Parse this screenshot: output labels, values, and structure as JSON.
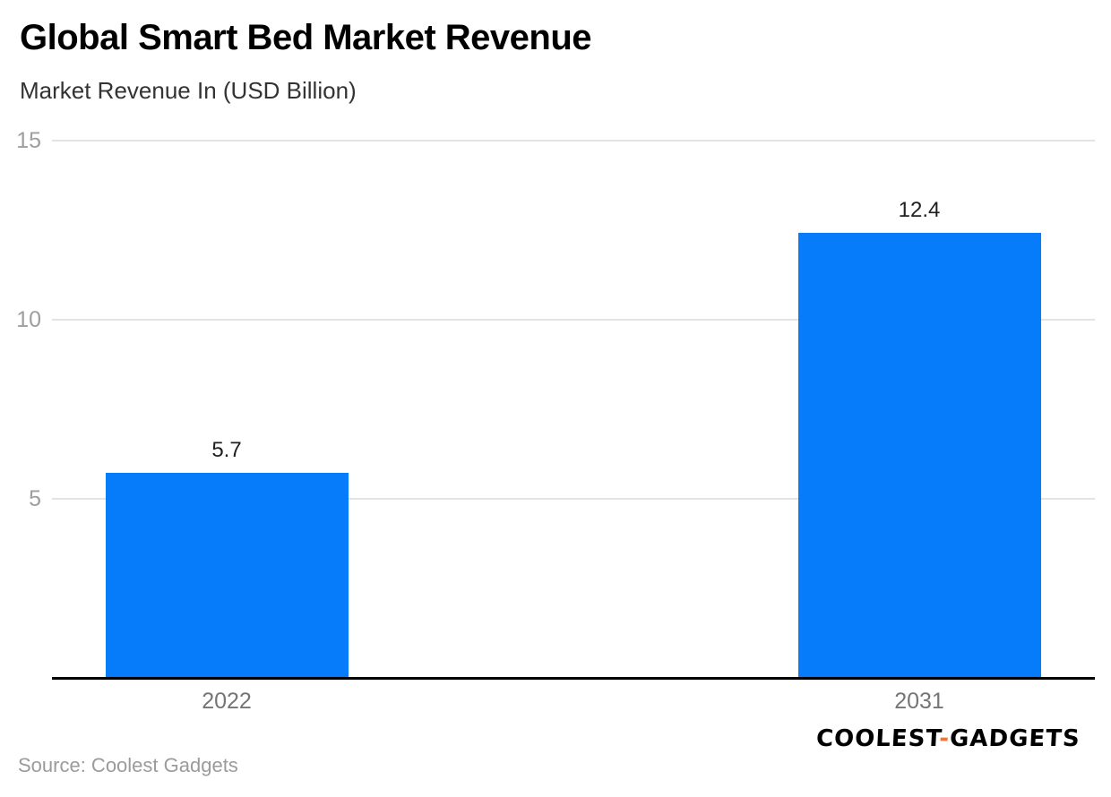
{
  "title": "Global Smart Bed Market Revenue",
  "subtitle": "Market Revenue In (USD Billion)",
  "source": "Source: Coolest Gadgets",
  "logo": {
    "part1": "COOLEST",
    "hyphen": "-",
    "part2": "GADGETS",
    "hyphen_color": "#f1763c"
  },
  "colors": {
    "bar": "#077cfb",
    "gridline": "#e3e3e3",
    "axis": "#000000",
    "y_tick_label": "#9e9e9e",
    "x_label": "#757575",
    "value_label": "#1f1f1f"
  },
  "chart_data": {
    "type": "bar",
    "categories": [
      "2022",
      "2031"
    ],
    "values": [
      5.7,
      12.4
    ],
    "value_labels": [
      "5.7",
      "12.4"
    ],
    "title": "Global Smart Bed Market Revenue",
    "subtitle": "Market Revenue In (USD Billion)",
    "xlabel": "",
    "ylabel": "Market Revenue In (USD Billion)",
    "ylim": [
      0,
      15
    ],
    "yticks": [
      5,
      10,
      15
    ],
    "grid": true,
    "legend": false,
    "bar_color": "#077cfb"
  }
}
